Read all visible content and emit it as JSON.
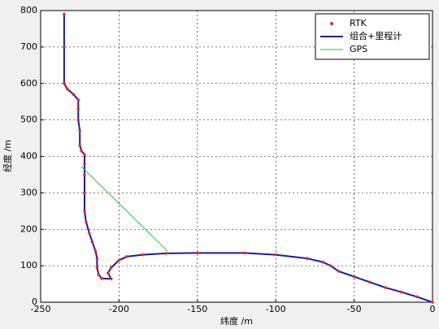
{
  "chart_data": {
    "type": "line",
    "xlabel": "纬度 /m",
    "ylabel": "经度 /m",
    "xlim": [
      -250,
      0
    ],
    "xticks": [
      -250,
      -200,
      -150,
      -100,
      -50,
      0
    ],
    "ylim": [
      0,
      800
    ],
    "yticks": [
      0,
      100,
      200,
      300,
      400,
      500,
      600,
      700,
      800
    ],
    "grid": true,
    "legend": "upper right",
    "series": [
      {
        "name": "RTK",
        "color": "#e8291c",
        "mode": "markers",
        "x": [
          -235,
          -235,
          -235,
          -233,
          -229,
          -226,
          -226,
          -226,
          -225,
          -225,
          -224,
          -222,
          -222,
          -222,
          -222,
          -222,
          -221,
          -219,
          -217,
          -215,
          -214,
          -214,
          -213,
          -211,
          -205,
          -207,
          -205,
          -200,
          -195,
          -185,
          -170,
          -150,
          -120,
          -100,
          -80,
          -70,
          -65,
          -60,
          -50,
          -40,
          -30,
          -20,
          -10,
          0
        ],
        "values": [
          790,
          700,
          600,
          585,
          570,
          555,
          530,
          500,
          470,
          430,
          415,
          405,
          380,
          350,
          300,
          250,
          220,
          190,
          165,
          140,
          120,
          95,
          75,
          65,
          64,
          80,
          95,
          115,
          125,
          130,
          134,
          135,
          135,
          130,
          120,
          110,
          100,
          85,
          70,
          55,
          40,
          28,
          15,
          0
        ]
      },
      {
        "name": "组合+里程计",
        "color": "#1a1aa6",
        "mode": "line",
        "x": [
          -235,
          -235,
          -235,
          -233,
          -229,
          -226,
          -226,
          -226,
          -225,
          -225,
          -224,
          -222,
          -222,
          -222,
          -222,
          -222,
          -221,
          -219,
          -217,
          -215,
          -214,
          -214,
          -213,
          -211,
          -205,
          -207,
          -205,
          -200,
          -195,
          -185,
          -170,
          -150,
          -120,
          -100,
          -80,
          -70,
          -65,
          -60,
          -50,
          -40,
          -30,
          -20,
          -10,
          0
        ],
        "values": [
          790,
          700,
          600,
          585,
          570,
          555,
          530,
          500,
          470,
          430,
          415,
          405,
          380,
          350,
          300,
          250,
          220,
          190,
          165,
          140,
          120,
          95,
          75,
          65,
          64,
          80,
          95,
          115,
          125,
          130,
          134,
          135,
          135,
          130,
          120,
          110,
          100,
          85,
          70,
          55,
          40,
          28,
          15,
          0
        ]
      },
      {
        "name": "GPS",
        "color": "#22cc22",
        "mode": "line",
        "x": [
          -224,
          -169
        ],
        "values": [
          372,
          140
        ]
      }
    ]
  }
}
